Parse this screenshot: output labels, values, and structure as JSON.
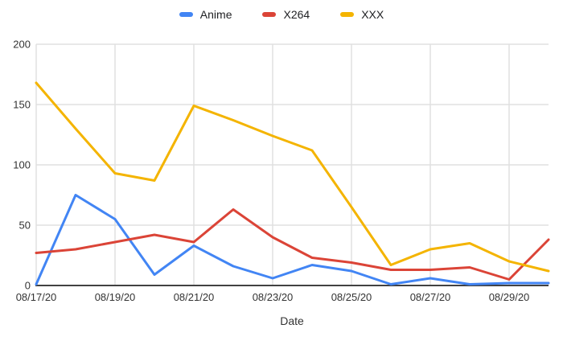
{
  "chart_data": {
    "type": "line",
    "x": [
      "08/17/20",
      "08/18/20",
      "08/19/20",
      "08/20/20",
      "08/21/20",
      "08/22/20",
      "08/23/20",
      "08/24/20",
      "08/25/20",
      "08/26/20",
      "08/27/20",
      "08/28/20",
      "08/29/20",
      "08/30/20"
    ],
    "x_tick_indices": [
      0,
      2,
      4,
      6,
      8,
      10,
      12
    ],
    "series": [
      {
        "name": "Anime",
        "color": "#4285F4",
        "values": [
          1,
          75,
          55,
          9,
          33,
          16,
          6,
          17,
          12,
          1,
          6,
          1,
          2,
          2
        ]
      },
      {
        "name": "X264",
        "color": "#DB4437",
        "values": [
          27,
          30,
          36,
          42,
          36,
          63,
          40,
          23,
          19,
          13,
          13,
          15,
          5,
          38
        ]
      },
      {
        "name": "XXX",
        "color": "#F4B400",
        "values": [
          168,
          130,
          93,
          87,
          149,
          137,
          124,
          112,
          65,
          17,
          30,
          35,
          20,
          12
        ]
      }
    ],
    "title": "",
    "xlabel": "Date",
    "ylabel": "",
    "ylim": [
      0,
      200
    ],
    "yticks": [
      0,
      50,
      100,
      150,
      200
    ],
    "grid": true,
    "legend_position": "top",
    "colors": {
      "grid": "#e0e0e0",
      "axis": "#424242",
      "tick_text": "#333333",
      "legend_text": "#202124"
    }
  }
}
